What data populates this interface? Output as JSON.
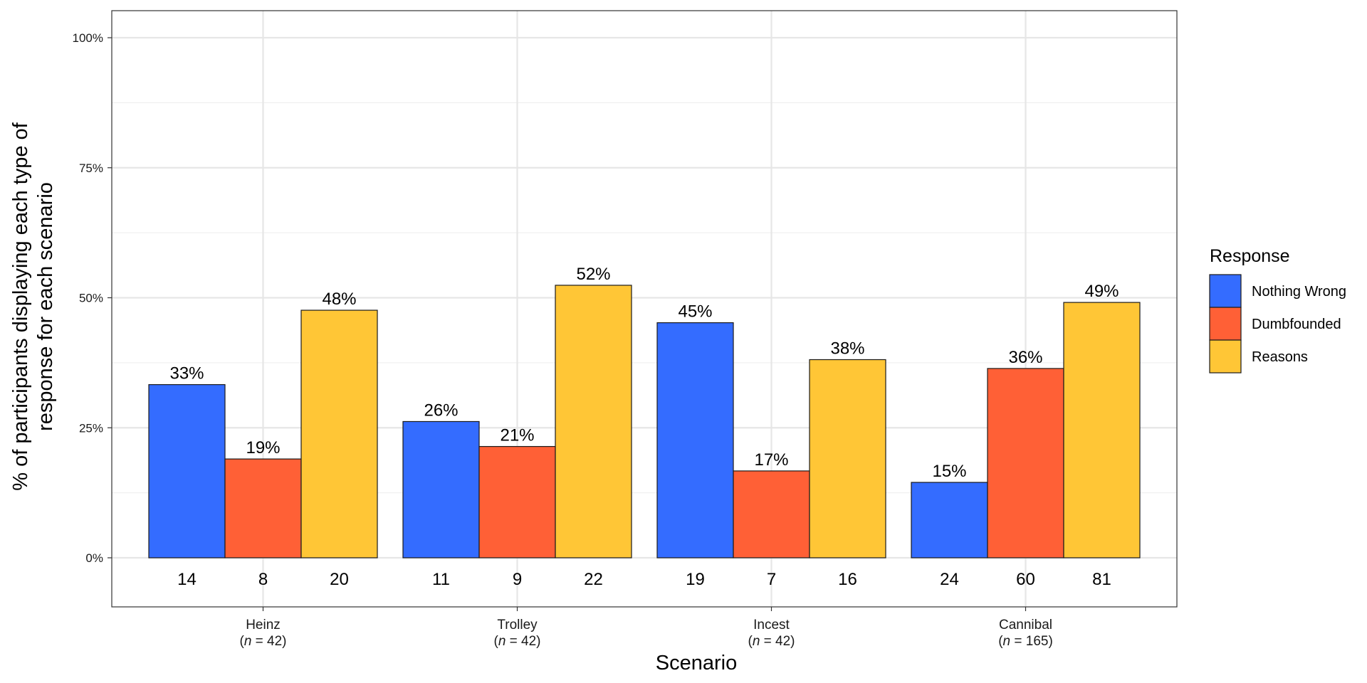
{
  "chart_data": {
    "type": "bar",
    "xlabel": "Scenario",
    "ylabel_line1": "% of participants displaying each type of",
    "ylabel_line2": "response for each scenario",
    "ylim": [
      0,
      100
    ],
    "yticks": [
      "0%",
      "25%",
      "50%",
      "75%",
      "100%"
    ],
    "categories": [
      {
        "name": "Heinz",
        "n_italic": "n",
        "n_rest": " = 42)"
      },
      {
        "name": "Trolley",
        "n_italic": "n",
        "n_rest": " = 42)"
      },
      {
        "name": "Incest",
        "n_italic": "n",
        "n_rest": " = 42)"
      },
      {
        "name": "Cannibal",
        "n_italic": "n",
        "n_rest": " = 165)"
      }
    ],
    "legend": {
      "title": "Response",
      "position": "right"
    },
    "grid": true,
    "series": [
      {
        "name": "Nothing Wrong",
        "color": "#346CFF",
        "values": [
          33.3,
          26.2,
          45.2,
          14.5
        ],
        "labels": [
          "33%",
          "26%",
          "45%",
          "15%"
        ],
        "counts": [
          14,
          11,
          19,
          24
        ]
      },
      {
        "name": "Dumbfounded",
        "color": "#FF6036",
        "values": [
          19.0,
          21.4,
          16.7,
          36.4
        ],
        "labels": [
          "19%",
          "21%",
          "17%",
          "36%"
        ],
        "counts": [
          8,
          9,
          7,
          60
        ]
      },
      {
        "name": "Reasons",
        "color": "#FFC636",
        "values": [
          47.6,
          52.4,
          38.1,
          49.1
        ],
        "labels": [
          "48%",
          "52%",
          "38%",
          "49%"
        ],
        "counts": [
          20,
          22,
          16,
          81
        ]
      }
    ]
  }
}
